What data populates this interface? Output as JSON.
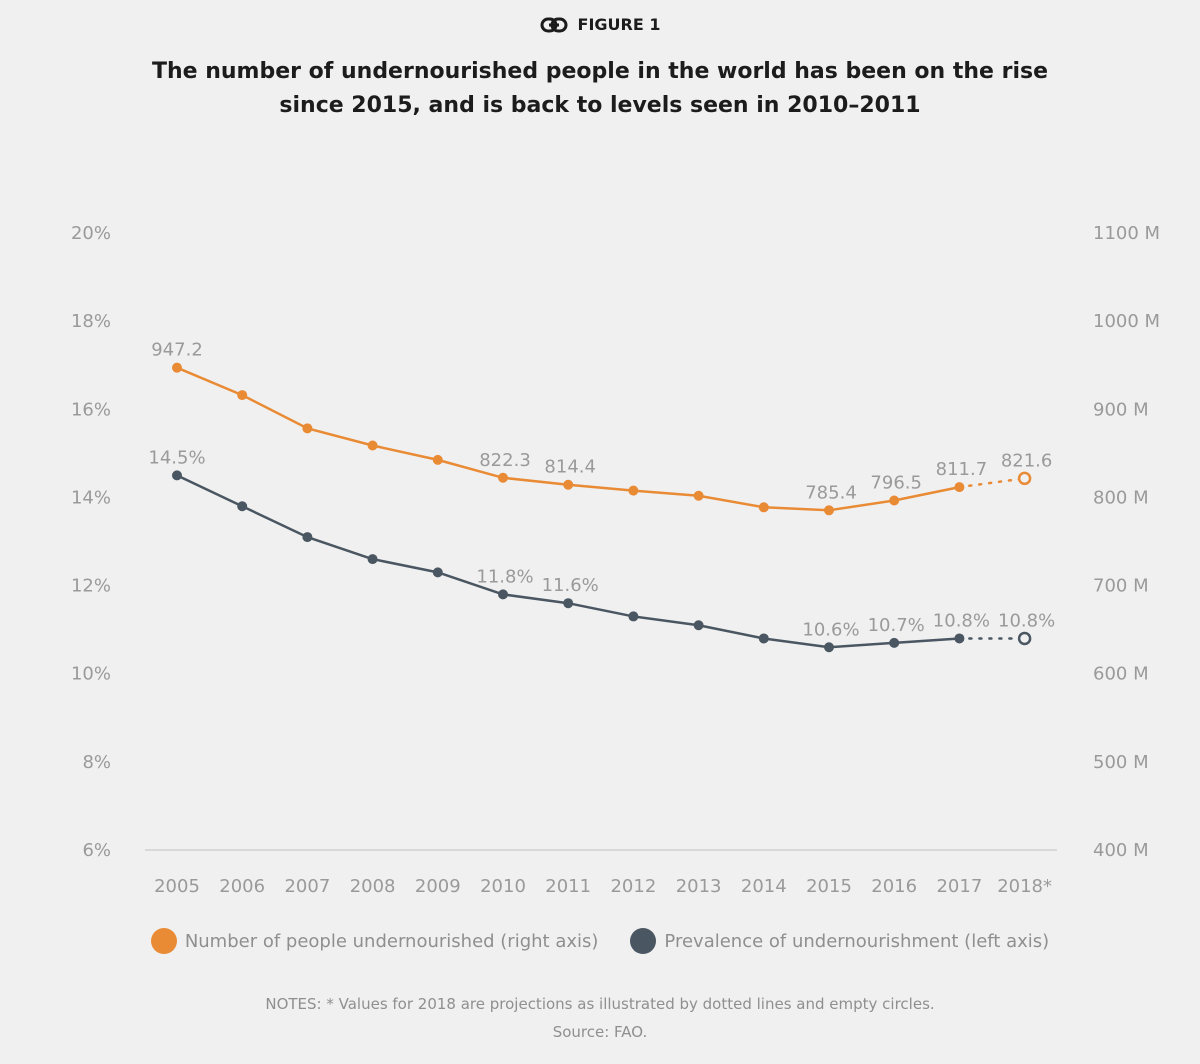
{
  "header": {
    "figure_label": "FIGURE 1",
    "icon": "link-icon"
  },
  "chart_data": {
    "type": "line",
    "title": "The number of undernourished people in the world has been on the rise since 2015, and is back to levels seen in 2010–2011",
    "categories": [
      "2005",
      "2006",
      "2007",
      "2008",
      "2009",
      "2010",
      "2011",
      "2012",
      "2013",
      "2014",
      "2015",
      "2016",
      "2017",
      "2018*"
    ],
    "left_axis": {
      "ticks": [
        "6%",
        "8%",
        "10%",
        "12%",
        "14%",
        "16%",
        "18%",
        "20%"
      ],
      "range": [
        6,
        20
      ]
    },
    "right_axis": {
      "ticks": [
        "400 M",
        "500 M",
        "600 M",
        "700 M",
        "800 M",
        "900 M",
        "1000 M",
        "1100 M"
      ],
      "range": [
        400,
        1100
      ]
    },
    "series": [
      {
        "name": "Number of people undernourished (right axis)",
        "axis": "right",
        "color": "#e98b35",
        "values": [
          947.2,
          916.1,
          878.4,
          858.9,
          842.6,
          822.3,
          814.4,
          807.7,
          801.9,
          788.8,
          785.4,
          796.5,
          811.7,
          821.6
        ],
        "labels": [
          "947.2",
          "",
          "",
          "",
          "",
          "822.3",
          "814.4",
          "",
          "",
          "",
          "785.4",
          "796.5",
          "811.7",
          "821.6"
        ],
        "projected_from_index": 13
      },
      {
        "name": "Prevalence of undernourishment (left axis)",
        "axis": "left",
        "color": "#4a5661",
        "values": [
          14.5,
          13.8,
          13.1,
          12.6,
          12.3,
          11.8,
          11.6,
          11.3,
          11.1,
          10.8,
          10.6,
          10.7,
          10.8,
          10.8
        ],
        "labels": [
          "14.5%",
          "",
          "",
          "",
          "",
          "11.8%",
          "11.6%",
          "",
          "",
          "",
          "10.6%",
          "10.7%",
          "10.8%",
          "10.8%"
        ],
        "projected_from_index": 13
      }
    ]
  },
  "notes": {
    "line1": "NOTES: * Values for 2018 are projections as illustrated by dotted lines and empty circles.",
    "line2": "Source: FAO."
  }
}
